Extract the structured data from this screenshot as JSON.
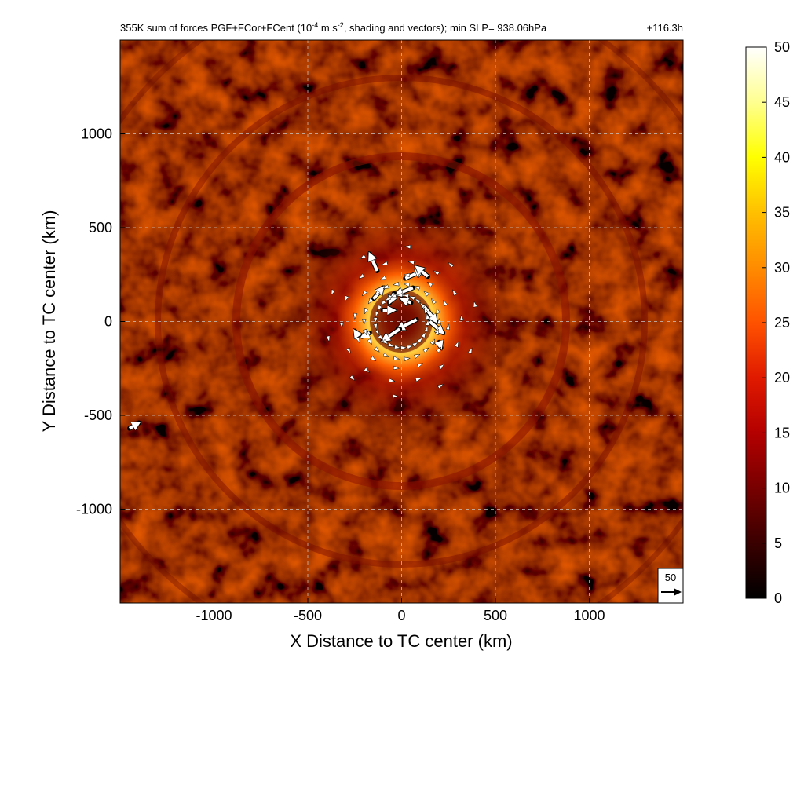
{
  "chart_data": {
    "type": "heatmap",
    "title": "355K sum of forces PGF+FCor+FCent (10",
    "title_sup": "-4",
    "title_mid": " m s",
    "title_sup2": "-2",
    "title_rest": ", shading and vectors); min SLP= 938.06hPa",
    "time_label": "+116.3h",
    "xlabel": "X Distance to TC center (km)",
    "ylabel": "Y Distance to TC center (km)",
    "xlim": [
      -1500,
      1500
    ],
    "ylim": [
      -1500,
      1500
    ],
    "xticks": [
      -1000,
      -500,
      0,
      500,
      1000
    ],
    "yticks": [
      -1000,
      -500,
      0,
      500,
      1000
    ],
    "grid": true,
    "colorbar": {
      "range": [
        0,
        50
      ],
      "ticks": [
        0,
        5,
        10,
        15,
        20,
        25,
        30,
        35,
        40,
        45,
        50
      ],
      "colors": [
        "#000000",
        "#3a0000",
        "#780000",
        "#b40000",
        "#e01a00",
        "#ff5200",
        "#ff8c00",
        "#ffc000",
        "#ffff00",
        "#ffff90",
        "#ffffff"
      ]
    },
    "reference_vector": {
      "label": "50",
      "value": 50
    },
    "vectors": [
      {
        "x": -130,
        "y": 270,
        "u": -20,
        "v": 45
      },
      {
        "x": 20,
        "y": 230,
        "u": 45,
        "v": 20
      },
      {
        "x": 60,
        "y": 180,
        "u": -45,
        "v": -18
      },
      {
        "x": 140,
        "y": 240,
        "u": -30,
        "v": 25
      },
      {
        "x": 120,
        "y": 80,
        "u": 32,
        "v": -40
      },
      {
        "x": 150,
        "y": 0,
        "u": 35,
        "v": -30
      },
      {
        "x": 80,
        "y": 10,
        "u": -50,
        "v": -25
      },
      {
        "x": -10,
        "y": -40,
        "u": -45,
        "v": -30
      },
      {
        "x": -150,
        "y": 120,
        "u": 25,
        "v": 30
      },
      {
        "x": -100,
        "y": 60,
        "u": 30,
        "v": 0
      },
      {
        "x": -40,
        "y": 150,
        "u": -12,
        "v": -25
      },
      {
        "x": -170,
        "y": -60,
        "u": -20,
        "v": -10
      },
      {
        "x": 50,
        "y": 100,
        "u": -25,
        "v": 10
      },
      {
        "x": -1450,
        "y": -570,
        "u": 25,
        "v": 15
      },
      {
        "x": -230,
        "y": -80,
        "u": -10,
        "v": 15
      },
      {
        "x": 200,
        "y": -110,
        "u": 5,
        "v": -15
      }
    ]
  }
}
